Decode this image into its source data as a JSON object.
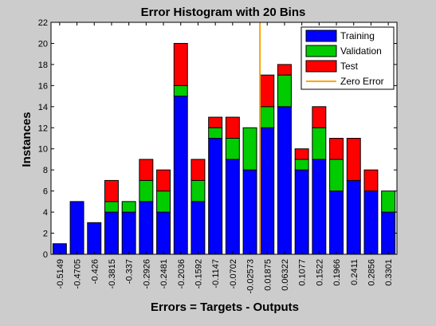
{
  "chart_data": {
    "type": "bar",
    "stacked": true,
    "title": "Error Histogram with 20 Bins",
    "xlabel": "Errors = Targets - Outputs",
    "ylabel": "Instances",
    "ylim": [
      0,
      22
    ],
    "yticks": [
      0,
      2,
      4,
      6,
      8,
      10,
      12,
      14,
      16,
      18,
      20,
      22
    ],
    "categories": [
      "-0.5149",
      "-0.4705",
      "-0.426",
      "-0.3815",
      "-0.337",
      "-0.2926",
      "-0.2481",
      "-0.2036",
      "-0.1592",
      "-0.1147",
      "-0.0702",
      "-0.02573",
      "0.01875",
      "0.06322",
      "0.1077",
      "0.1522",
      "0.1966",
      "0.2411",
      "0.2856",
      "0.3301"
    ],
    "series": [
      {
        "name": "Training",
        "color": "#0000ff",
        "values": [
          1,
          5,
          3,
          4,
          4,
          5,
          4,
          15,
          5,
          11,
          9,
          8,
          12,
          14,
          8,
          9,
          6,
          7,
          6,
          4
        ]
      },
      {
        "name": "Validation",
        "color": "#00cc00",
        "values": [
          0,
          0,
          0,
          1,
          1,
          2,
          2,
          1,
          2,
          1,
          2,
          4,
          2,
          3,
          1,
          3,
          3,
          0,
          0,
          2
        ]
      },
      {
        "name": "Test",
        "color": "#ff0000",
        "values": [
          0,
          0,
          0,
          2,
          0,
          2,
          2,
          4,
          2,
          1,
          2,
          0,
          3,
          1,
          1,
          2,
          2,
          4,
          2,
          0
        ]
      }
    ],
    "reference_line": {
      "name": "Zero Error",
      "color": "#ffa500",
      "x_value": 0
    },
    "legend": "top-right",
    "grid": false,
    "background_color": "#cccccc",
    "plot_color": "#ffffff"
  }
}
